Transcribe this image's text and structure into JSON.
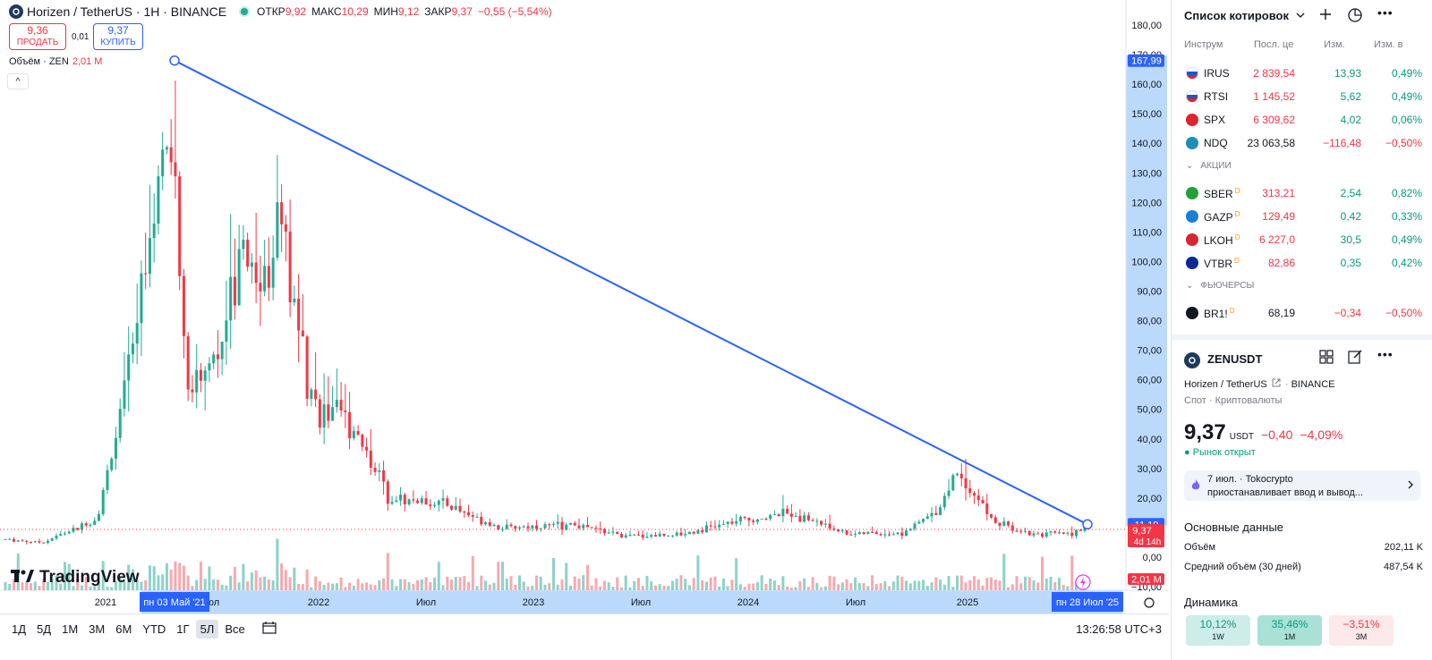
{
  "header": {
    "symbol_title": "Horizen / TetherUS · 1H · BINANCE",
    "ohlc": [
      {
        "label": "ОТКР",
        "value": "9,92"
      },
      {
        "label": "МАКС",
        "value": "10,29"
      },
      {
        "label": "МИН",
        "value": "9,12"
      },
      {
        "label": "ЗАКР",
        "value": "9,37"
      }
    ],
    "change": "−0,55 (−5,54%)",
    "sell_price": "9,36",
    "sell_label": "ПРОДАТЬ",
    "spread": "0,01",
    "buy_price": "9,37",
    "buy_label": "КУПИТЬ",
    "volume_label": "Объём · ZEN",
    "volume_value": "2,01 M",
    "collapse_glyph": "^"
  },
  "price_axis": {
    "ticks": [
      "180,00",
      "170,00",
      "160,00",
      "150,00",
      "140,00",
      "130,00",
      "120,00",
      "110,00",
      "100,00",
      "90,00",
      "80,00",
      "70,00",
      "60,00",
      "50,00",
      "40,00",
      "30,00",
      "20,00",
      "10,00",
      "0,00",
      "−10,00"
    ],
    "tag_high": "167,99",
    "tag_line": "11,10",
    "tag_last": "9,37",
    "tag_countdown": "4d 14h",
    "tag_volume": "2,01 M"
  },
  "time_axis": {
    "labels": [
      "2021",
      "юл",
      "2022",
      "Июл",
      "2023",
      "Июл",
      "2024",
      "Июл",
      "2025"
    ],
    "cursor_start": "пн 03 Май '21",
    "cursor_end": "пн 28 Июл '25"
  },
  "branding": {
    "logo_text": "TradingView"
  },
  "toolbar": {
    "timeframes": [
      "1Д",
      "5Д",
      "1М",
      "3М",
      "6М",
      "YTD",
      "1Г",
      "5Л",
      "Все"
    ],
    "active": "5Л",
    "clock": "13:26:58 UTC+3"
  },
  "colors": {
    "up": "#22ab94",
    "down": "#f23645",
    "accent": "#2962ff",
    "vol_up": "#8cd3c8",
    "vol_down": "#f7a9ae"
  },
  "watchlist": {
    "title": "Список котировок",
    "columns": [
      "Инструм",
      "Посл. це",
      "Изм.",
      "Изм. в"
    ],
    "indices": [
      {
        "sym": "IRUS",
        "last": "2 839,54",
        "chg": "13,93",
        "pct": "0,49%",
        "dir": "up",
        "flag": "ru"
      },
      {
        "sym": "RTSI",
        "last": "1 145,52",
        "chg": "5,62",
        "pct": "0,49%",
        "dir": "up",
        "flag": "ru"
      },
      {
        "sym": "SPX",
        "last": "6 309,62",
        "chg": "4,02",
        "pct": "0,06%",
        "dir": "up",
        "flag": "spx",
        "badge": "500"
      },
      {
        "sym": "NDQ",
        "last": "23 063,58",
        "chg": "−116,48",
        "pct": "−0,50%",
        "dir": "down",
        "flag": "ndq",
        "badge": "100"
      }
    ],
    "section_stocks": "АКЦИИ",
    "stocks": [
      {
        "sym": "SBER",
        "last": "313,21",
        "chg": "2,54",
        "pct": "0,82%",
        "dir": "up",
        "flag": "sber"
      },
      {
        "sym": "GAZP",
        "last": "129,49",
        "chg": "0,42",
        "pct": "0,33%",
        "dir": "up",
        "flag": "gazp"
      },
      {
        "sym": "LKOH",
        "last": "6 227,0",
        "chg": "30,5",
        "pct": "0,49%",
        "dir": "up",
        "flag": "lkoh"
      },
      {
        "sym": "VTBR",
        "last": "82,86",
        "chg": "0,35",
        "pct": "0,42%",
        "dir": "up",
        "flag": "vtbr"
      }
    ],
    "section_futures": "ФЬЮЧЕРСЫ",
    "futures": [
      {
        "sym": "BR1!",
        "last": "68,19",
        "chg": "−0,34",
        "pct": "−0,50%",
        "dir": "down",
        "flag": "br"
      }
    ],
    "d_marker": "D"
  },
  "details": {
    "symbol": "ZENUSDT",
    "full_name": "Horizen / TetherUS",
    "exchange": "BINANCE",
    "type": "Спот · Криптовалюты",
    "price": "9,37",
    "currency": "USDT",
    "change": "−0,40",
    "change_pct": "−4,09%",
    "market_status": "Рынок открыт",
    "news_date": "7 июл.",
    "news_source": "Tokocrypto",
    "news_text": "приостанавливает ввод и вывод...",
    "fundamentals_title": "Основные данные",
    "volume_label": "Объём",
    "volume_value": "202,11 K",
    "avg_volume_label": "Средний объём (30 дней)",
    "avg_volume_value": "487,54 K",
    "dynamics_title": "Динамика",
    "performance": [
      {
        "value": "10,12%",
        "period": "1W",
        "dir": "up"
      },
      {
        "value": "35,46%",
        "period": "1M",
        "dir": "up"
      },
      {
        "value": "−3,51%",
        "period": "3M",
        "dir": "down"
      }
    ]
  },
  "chart_data": {
    "type": "candlestick",
    "symbol": "ZENUSDT",
    "x_range": [
      "2020-08",
      "2025-07"
    ],
    "ylim": [
      -10,
      180
    ],
    "approx_weekly_closes": [
      {
        "date": "2020-08",
        "close": 6
      },
      {
        "date": "2020-10",
        "close": 5
      },
      {
        "date": "2020-12",
        "close": 10
      },
      {
        "date": "2021-01",
        "close": 13
      },
      {
        "date": "2021-02",
        "close": 40
      },
      {
        "date": "2021-03",
        "close": 70
      },
      {
        "date": "2021-04",
        "close": 120
      },
      {
        "date": "2021-05",
        "close": 145
      },
      {
        "date": "2021-06",
        "close": 55
      },
      {
        "date": "2021-08",
        "close": 75
      },
      {
        "date": "2021-09",
        "close": 110
      },
      {
        "date": "2021-10",
        "close": 90
      },
      {
        "date": "2021-11",
        "close": 120
      },
      {
        "date": "2021-12",
        "close": 75
      },
      {
        "date": "2022-01",
        "close": 50
      },
      {
        "date": "2022-03",
        "close": 45
      },
      {
        "date": "2022-05",
        "close": 20
      },
      {
        "date": "2022-08",
        "close": 18
      },
      {
        "date": "2022-11",
        "close": 10
      },
      {
        "date": "2023-03",
        "close": 11
      },
      {
        "date": "2023-06",
        "close": 7
      },
      {
        "date": "2023-09",
        "close": 8
      },
      {
        "date": "2023-12",
        "close": 12
      },
      {
        "date": "2024-03",
        "close": 15
      },
      {
        "date": "2024-06",
        "close": 8
      },
      {
        "date": "2024-09",
        "close": 8
      },
      {
        "date": "2024-11",
        "close": 16
      },
      {
        "date": "2024-12",
        "close": 30
      },
      {
        "date": "2025-02",
        "close": 12
      },
      {
        "date": "2025-04",
        "close": 8
      },
      {
        "date": "2025-06",
        "close": 8
      },
      {
        "date": "2025-07",
        "close": 9.37
      }
    ],
    "trendline": {
      "from": {
        "date": "2021-05-03",
        "price": 167.99
      },
      "to": {
        "date": "2025-07-28",
        "price": 11.1
      }
    },
    "last_price": 9.37
  }
}
